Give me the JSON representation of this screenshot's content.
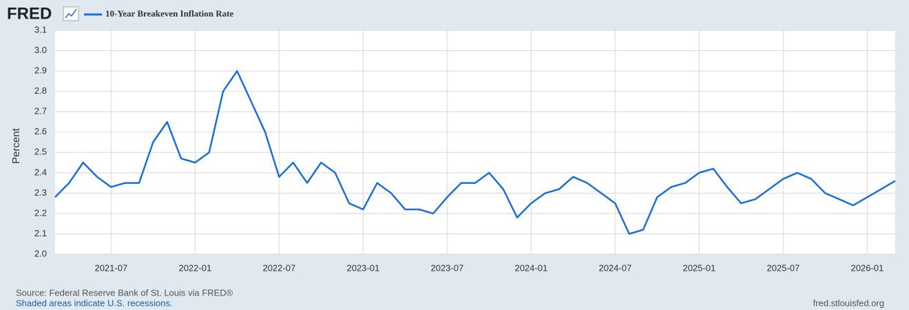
{
  "logo": "FRED",
  "chart_data": {
    "type": "line",
    "series": [
      {
        "name": "10-Year Breakeven Inflation Rate",
        "color": "#1a6fdd",
        "values": [
          2.28,
          2.35,
          2.45,
          2.38,
          2.33,
          2.35,
          2.35,
          2.55,
          2.65,
          2.47,
          2.45,
          2.5,
          2.8,
          2.9,
          2.75,
          2.6,
          2.38,
          2.45,
          2.35,
          2.45,
          2.4,
          2.25,
          2.22,
          2.35,
          2.3,
          2.22,
          2.22,
          2.2,
          2.28,
          2.35,
          2.35,
          2.4,
          2.32,
          2.18,
          2.25,
          2.3,
          2.32,
          2.38,
          2.35,
          2.3,
          2.25,
          2.1,
          2.12,
          2.28,
          2.33,
          2.35,
          2.4,
          2.42,
          2.33,
          2.25,
          2.27,
          2.32,
          2.37,
          2.4,
          2.37,
          2.3,
          2.27,
          2.24,
          2.28,
          2.32,
          2.36
        ]
      }
    ],
    "x": [
      "2021-03",
      "2021-04",
      "2021-05",
      "2021-06",
      "2021-07",
      "2021-08",
      "2021-09",
      "2021-10",
      "2021-11",
      "2021-12",
      "2022-01",
      "2022-02",
      "2022-03",
      "2022-04",
      "2022-05",
      "2022-06",
      "2022-07",
      "2022-08",
      "2022-09",
      "2022-10",
      "2022-11",
      "2022-12",
      "2023-01",
      "2023-02",
      "2023-03",
      "2023-04",
      "2023-05",
      "2023-06",
      "2023-07",
      "2023-08",
      "2023-09",
      "2023-10",
      "2023-11",
      "2023-12",
      "2024-01",
      "2024-02",
      "2024-03",
      "2024-04",
      "2024-05",
      "2024-06",
      "2024-07",
      "2024-08",
      "2024-09",
      "2024-10",
      "2024-11",
      "2024-12",
      "2025-01",
      "2025-02",
      "2025-03",
      "2025-04",
      "2025-05",
      "2025-06",
      "2025-07",
      "2025-08",
      "2025-09",
      "2025-10",
      "2025-11",
      "2025-12",
      "2026-01",
      "2026-02",
      "2026-03"
    ],
    "xlim": [
      "2021-03",
      "2026-03"
    ],
    "xticks": [
      "2021-07",
      "2022-01",
      "2022-07",
      "2023-01",
      "2023-07",
      "2024-01",
      "2024-07",
      "2025-01",
      "2025-07",
      "2026-01"
    ],
    "ylim": [
      2.0,
      3.1
    ],
    "yticks": [
      {
        "value": 2,
        "label": "2.0"
      },
      2.1,
      2.2,
      2.3,
      2.4,
      2.5,
      2.6,
      2.7,
      2.8,
      2.9,
      {
        "value": 3,
        "label": "3.0"
      },
      3.1
    ],
    "ylabel": "Percent",
    "grid": true
  },
  "footer": {
    "source": "Source: Federal Reserve Bank of St. Louis via FRED®",
    "note": "Shaded areas indicate U.S. recessions.",
    "site": "fred.stlouisfed.org"
  }
}
